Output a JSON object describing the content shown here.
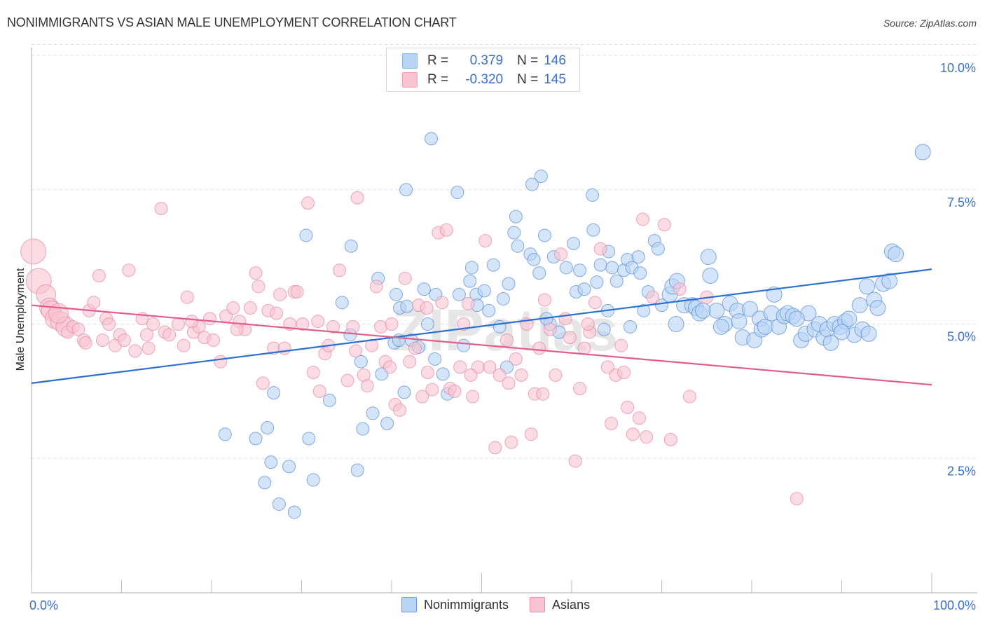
{
  "header": {
    "title": "NONIMMIGRANTS VS ASIAN MALE UNEMPLOYMENT CORRELATION CHART",
    "source": "Source: ZipAtlas.com"
  },
  "legend_box": {
    "rows": [
      {
        "swatch": "#b9d3f5",
        "r_label": "R =",
        "r_value": "0.379",
        "n_label": "N =",
        "n_value": "146"
      },
      {
        "swatch": "#f9c3d2",
        "r_label": "R =",
        "r_value": "-0.320",
        "n_label": "N =",
        "n_value": "145"
      }
    ]
  },
  "bottom_legend": [
    {
      "label": "Nonimmigrants",
      "color": "#b9d3f5",
      "stroke": "#6a9be0"
    },
    {
      "label": "Asians",
      "color": "#f9c3d2",
      "stroke": "#e890aa"
    }
  ],
  "watermark": "ZIPatlas",
  "colors": {
    "blue_fill": "#b9d3f5",
    "blue_stroke": "#5b8fdc",
    "blue_line": "#2a6fd4",
    "pink_fill": "#f9c3d2",
    "pink_stroke": "#e88aa6",
    "pink_line": "#e35d8a",
    "tick_label": "#3b6fcc"
  },
  "chart_data": {
    "type": "scatter",
    "title": "NONIMMIGRANTS VS ASIAN MALE UNEMPLOYMENT CORRELATION CHART",
    "xlabel": "",
    "ylabel": "Male Unemployment",
    "xlim": [
      0,
      100
    ],
    "ylim": [
      0,
      10.2
    ],
    "x_tick_labels": [
      "0.0%",
      "100.0%"
    ],
    "y_ticks": [
      2.5,
      5.0,
      7.5,
      10.0
    ],
    "y_tick_labels": [
      "2.5%",
      "5.0%",
      "7.5%",
      "10.0%"
    ],
    "grid": "horizontal-dashed",
    "legend": "top-center",
    "series": [
      {
        "name": "Nonimmigrants",
        "R": 0.379,
        "N": 146,
        "trend": {
          "x": [
            0,
            100
          ],
          "y": [
            3.9,
            6.02
          ]
        },
        "points": [
          [
            21.5,
            2.95
          ],
          [
            24.9,
            2.87
          ],
          [
            25.9,
            2.05
          ],
          [
            26.2,
            3.07
          ],
          [
            26.6,
            2.43
          ],
          [
            26.9,
            3.72
          ],
          [
            27.5,
            1.65
          ],
          [
            28.6,
            2.35
          ],
          [
            29.2,
            1.5
          ],
          [
            30.5,
            6.65
          ],
          [
            30.8,
            2.87
          ],
          [
            31.3,
            2.1
          ],
          [
            33.1,
            3.58
          ],
          [
            34.5,
            5.4
          ],
          [
            35.4,
            4.8
          ],
          [
            35.5,
            6.45
          ],
          [
            36.2,
            2.28
          ],
          [
            36.6,
            4.3
          ],
          [
            36.8,
            3.05
          ],
          [
            37.9,
            3.34
          ],
          [
            38.5,
            5.85
          ],
          [
            38.9,
            4.07
          ],
          [
            39.5,
            3.15
          ],
          [
            40.3,
            4.65
          ],
          [
            40.5,
            5.55
          ],
          [
            40.9,
            5.3
          ],
          [
            41.4,
            3.73
          ],
          [
            41.6,
            7.5
          ],
          [
            41.7,
            5.33
          ],
          [
            42.2,
            4.7
          ],
          [
            43.0,
            4.57
          ],
          [
            43.6,
            5.65
          ],
          [
            44.0,
            5.0
          ],
          [
            44.4,
            8.45
          ],
          [
            44.8,
            4.35
          ],
          [
            44.9,
            5.55
          ],
          [
            45.7,
            4.07
          ],
          [
            46.2,
            3.7
          ],
          [
            47.3,
            7.45
          ],
          [
            47.5,
            5.55
          ],
          [
            48.7,
            5.8
          ],
          [
            48.9,
            6.05
          ],
          [
            49.4,
            5.55
          ],
          [
            49.5,
            5.35
          ],
          [
            50.3,
            5.62
          ],
          [
            50.8,
            5.25
          ],
          [
            51.3,
            6.1
          ],
          [
            52.0,
            4.95
          ],
          [
            52.4,
            5.47
          ],
          [
            53.0,
            5.75
          ],
          [
            53.6,
            6.7
          ],
          [
            53.8,
            7.0
          ],
          [
            54.0,
            6.45
          ],
          [
            55.4,
            6.3
          ],
          [
            55.6,
            7.6
          ],
          [
            55.8,
            6.2
          ],
          [
            56.4,
            5.95
          ],
          [
            56.6,
            7.75
          ],
          [
            57.0,
            6.65
          ],
          [
            57.6,
            5.0
          ],
          [
            58.0,
            6.25
          ],
          [
            58.6,
            4.85
          ],
          [
            59.4,
            6.05
          ],
          [
            60.2,
            6.5
          ],
          [
            60.5,
            5.6
          ],
          [
            60.9,
            6.0
          ],
          [
            61.4,
            5.65
          ],
          [
            62.3,
            7.4
          ],
          [
            62.4,
            6.75
          ],
          [
            62.8,
            5.78
          ],
          [
            63.2,
            6.1
          ],
          [
            64.0,
            5.25
          ],
          [
            64.1,
            6.35
          ],
          [
            64.5,
            6.05
          ],
          [
            65.0,
            5.8
          ],
          [
            65.8,
            6.0
          ],
          [
            66.2,
            6.2
          ],
          [
            66.7,
            6.05
          ],
          [
            67.4,
            6.25
          ],
          [
            67.6,
            5.95
          ],
          [
            68.0,
            5.25
          ],
          [
            68.5,
            5.6
          ],
          [
            69.2,
            6.55
          ],
          [
            69.6,
            6.4
          ],
          [
            70.0,
            5.35
          ],
          [
            70.9,
            5.55
          ],
          [
            71.2,
            5.7
          ],
          [
            71.6,
            5.0
          ],
          [
            71.7,
            5.8
          ],
          [
            72.5,
            5.35
          ],
          [
            73.4,
            5.35
          ],
          [
            73.8,
            5.3
          ],
          [
            74.2,
            5.2
          ],
          [
            74.6,
            5.25
          ],
          [
            75.2,
            6.25
          ],
          [
            75.4,
            5.9
          ],
          [
            76.1,
            5.25
          ],
          [
            77.0,
            5.0
          ],
          [
            77.6,
            5.38
          ],
          [
            78.4,
            5.25
          ],
          [
            78.6,
            5.05
          ],
          [
            79.0,
            4.75
          ],
          [
            79.8,
            5.28
          ],
          [
            80.3,
            4.7
          ],
          [
            80.9,
            5.1
          ],
          [
            81.1,
            4.9
          ],
          [
            81.5,
            4.95
          ],
          [
            82.2,
            5.2
          ],
          [
            82.5,
            5.55
          ],
          [
            83.0,
            4.95
          ],
          [
            83.6,
            5.15
          ],
          [
            84.0,
            5.2
          ],
          [
            84.6,
            5.15
          ],
          [
            85.5,
            4.7
          ],
          [
            86.0,
            4.82
          ],
          [
            86.3,
            5.2
          ],
          [
            87.0,
            4.9
          ],
          [
            87.5,
            5.0
          ],
          [
            88.0,
            4.75
          ],
          [
            88.4,
            4.9
          ],
          [
            88.8,
            4.65
          ],
          [
            89.2,
            5.0
          ],
          [
            89.8,
            4.95
          ],
          [
            90.4,
            5.05
          ],
          [
            90.8,
            5.1
          ],
          [
            91.4,
            4.8
          ],
          [
            92.0,
            5.35
          ],
          [
            92.3,
            4.9
          ],
          [
            92.8,
            5.7
          ],
          [
            93.6,
            5.45
          ],
          [
            94.0,
            5.3
          ],
          [
            94.6,
            5.75
          ],
          [
            95.3,
            5.8
          ],
          [
            95.6,
            6.35
          ],
          [
            96.0,
            6.3
          ],
          [
            99.0,
            8.2
          ],
          [
            40.8,
            4.7
          ],
          [
            57.2,
            5.1
          ],
          [
            63.6,
            4.9
          ],
          [
            48.0,
            4.6
          ],
          [
            52.8,
            4.2
          ],
          [
            66.5,
            4.95
          ],
          [
            76.6,
            4.95
          ],
          [
            85.0,
            5.1
          ],
          [
            90.0,
            4.85
          ],
          [
            93.0,
            4.82
          ]
        ]
      },
      {
        "name": "Asians",
        "R": -0.32,
        "N": 145,
        "trend": {
          "x": [
            0,
            100
          ],
          "y": [
            5.35,
            3.87
          ]
        },
        "points": [
          [
            0.2,
            6.35
          ],
          [
            0.8,
            5.8
          ],
          [
            1.6,
            5.55
          ],
          [
            2.0,
            5.3
          ],
          [
            2.2,
            5.25
          ],
          [
            2.6,
            5.1
          ],
          [
            3.2,
            5.05
          ],
          [
            3.8,
            4.95
          ],
          [
            4.0,
            4.85
          ],
          [
            4.6,
            4.95
          ],
          [
            5.2,
            4.9
          ],
          [
            5.8,
            4.7
          ],
          [
            6.4,
            5.25
          ],
          [
            6.9,
            5.4
          ],
          [
            7.5,
            5.9
          ],
          [
            7.9,
            4.7
          ],
          [
            8.3,
            5.1
          ],
          [
            8.6,
            5.0
          ],
          [
            9.3,
            4.6
          ],
          [
            9.8,
            4.8
          ],
          [
            10.3,
            4.7
          ],
          [
            10.8,
            6.0
          ],
          [
            11.5,
            4.5
          ],
          [
            12.3,
            5.1
          ],
          [
            12.8,
            4.8
          ],
          [
            13.5,
            5.0
          ],
          [
            14.4,
            7.15
          ],
          [
            14.8,
            4.85
          ],
          [
            15.3,
            4.8
          ],
          [
            16.3,
            5.0
          ],
          [
            16.9,
            4.6
          ],
          [
            17.3,
            5.5
          ],
          [
            18.0,
            4.85
          ],
          [
            18.6,
            4.95
          ],
          [
            19.2,
            4.75
          ],
          [
            19.8,
            5.1
          ],
          [
            20.2,
            4.7
          ],
          [
            21.0,
            4.3
          ],
          [
            21.6,
            5.15
          ],
          [
            22.4,
            5.3
          ],
          [
            23.1,
            5.05
          ],
          [
            23.7,
            4.9
          ],
          [
            24.3,
            5.3
          ],
          [
            24.9,
            5.95
          ],
          [
            25.2,
            5.7
          ],
          [
            25.7,
            3.9
          ],
          [
            26.3,
            5.25
          ],
          [
            26.9,
            4.55
          ],
          [
            27.6,
            5.55
          ],
          [
            28.1,
            4.55
          ],
          [
            28.7,
            5.0
          ],
          [
            29.2,
            5.6
          ],
          [
            29.5,
            5.6
          ],
          [
            30.1,
            5.0
          ],
          [
            30.7,
            7.25
          ],
          [
            31.3,
            4.1
          ],
          [
            32.0,
            3.75
          ],
          [
            32.6,
            4.45
          ],
          [
            33.0,
            4.6
          ],
          [
            33.5,
            4.95
          ],
          [
            34.2,
            6.0
          ],
          [
            35.1,
            3.95
          ],
          [
            35.7,
            4.95
          ],
          [
            36.2,
            7.35
          ],
          [
            36.9,
            4.05
          ],
          [
            37.3,
            3.85
          ],
          [
            37.8,
            4.6
          ],
          [
            38.3,
            5.7
          ],
          [
            38.8,
            4.95
          ],
          [
            39.3,
            4.3
          ],
          [
            39.8,
            4.2
          ],
          [
            40.4,
            3.5
          ],
          [
            40.9,
            3.4
          ],
          [
            41.5,
            5.85
          ],
          [
            42.0,
            4.3
          ],
          [
            42.6,
            4.55
          ],
          [
            43.0,
            5.35
          ],
          [
            43.4,
            3.65
          ],
          [
            43.9,
            5.3
          ],
          [
            44.5,
            3.78
          ],
          [
            45.2,
            6.7
          ],
          [
            45.6,
            5.4
          ],
          [
            46.1,
            6.75
          ],
          [
            46.5,
            3.8
          ],
          [
            47.0,
            3.75
          ],
          [
            47.6,
            4.2
          ],
          [
            48.0,
            5.0
          ],
          [
            48.5,
            5.38
          ],
          [
            49.0,
            3.65
          ],
          [
            49.6,
            4.2
          ],
          [
            50.4,
            6.55
          ],
          [
            50.9,
            4.2
          ],
          [
            51.5,
            2.7
          ],
          [
            52.0,
            4.05
          ],
          [
            52.8,
            4.7
          ],
          [
            53.3,
            2.8
          ],
          [
            53.8,
            4.35
          ],
          [
            54.4,
            4.05
          ],
          [
            55.0,
            5.0
          ],
          [
            55.5,
            2.95
          ],
          [
            55.9,
            3.7
          ],
          [
            56.4,
            4.55
          ],
          [
            57.0,
            5.45
          ],
          [
            57.6,
            4.9
          ],
          [
            58.2,
            4.05
          ],
          [
            58.8,
            6.3
          ],
          [
            59.3,
            5.1
          ],
          [
            59.8,
            4.75
          ],
          [
            60.4,
            2.45
          ],
          [
            60.9,
            3.8
          ],
          [
            61.4,
            4.55
          ],
          [
            62.0,
            4.85
          ],
          [
            62.6,
            5.4
          ],
          [
            63.2,
            6.4
          ],
          [
            64.0,
            4.2
          ],
          [
            64.4,
            3.15
          ],
          [
            64.9,
            4.05
          ],
          [
            65.5,
            4.6
          ],
          [
            66.2,
            3.45
          ],
          [
            66.8,
            2.95
          ],
          [
            67.5,
            3.25
          ],
          [
            67.9,
            6.95
          ],
          [
            68.3,
            2.9
          ],
          [
            69.0,
            5.5
          ],
          [
            70.3,
            6.85
          ],
          [
            71.0,
            2.85
          ],
          [
            72.0,
            5.65
          ],
          [
            73.1,
            3.65
          ],
          [
            75.0,
            5.5
          ],
          [
            85.0,
            1.75
          ],
          [
            3.0,
            5.2
          ],
          [
            6.0,
            4.65
          ],
          [
            13.0,
            4.55
          ],
          [
            17.8,
            5.05
          ],
          [
            22.8,
            4.9
          ],
          [
            27.2,
            5.2
          ],
          [
            31.8,
            5.05
          ],
          [
            36.0,
            4.5
          ],
          [
            40.0,
            5.0
          ],
          [
            44.0,
            4.1
          ],
          [
            48.8,
            4.05
          ],
          [
            53.0,
            3.9
          ],
          [
            56.8,
            3.7
          ],
          [
            61.8,
            5.0
          ],
          [
            65.8,
            4.1
          ]
        ]
      }
    ]
  }
}
